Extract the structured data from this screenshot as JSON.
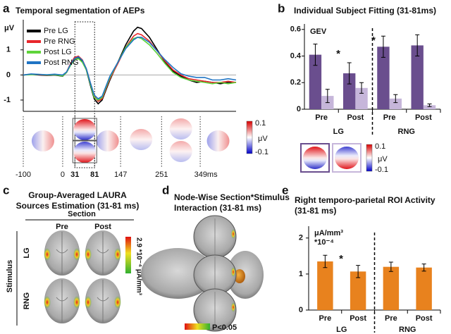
{
  "chart_data": [
    {
      "type": "line",
      "panel": "a",
      "title": "Temporal segmentation of AEPs",
      "ylabel": "μV",
      "x": [
        -100,
        -80,
        -60,
        -40,
        -20,
        0,
        10,
        20,
        30,
        40,
        50,
        60,
        70,
        80,
        90,
        100,
        110,
        120,
        140,
        160,
        180,
        190,
        200,
        220,
        240,
        260,
        280,
        300,
        320,
        340,
        360,
        380,
        400,
        420,
        440
      ],
      "xlim": [
        -100,
        440
      ],
      "xticks": [
        -100,
        0,
        31,
        81,
        147,
        251,
        {
          "value": 349,
          "label": "349ms"
        }
      ],
      "highlight": [
        31,
        81
      ],
      "ylim": [
        -1.45,
        2.2
      ],
      "yticks": [
        -1,
        0,
        1
      ],
      "series": [
        {
          "name": "Pre LG",
          "color": "#000000",
          "values": [
            0,
            0.02,
            0,
            -0.02,
            0,
            -0.05,
            0.1,
            0.4,
            0.65,
            0.7,
            0.55,
            0.2,
            -0.4,
            -0.95,
            -1.15,
            -1.0,
            -0.6,
            -0.2,
            0.5,
            1.2,
            1.75,
            1.9,
            1.85,
            1.5,
            1.0,
            0.5,
            0.15,
            -0.05,
            -0.2,
            -0.3,
            -0.25,
            -0.3,
            -0.35,
            -0.3,
            -0.3
          ]
        },
        {
          "name": "Pre RNG",
          "color": "#e8262b",
          "values": [
            0,
            0.03,
            0.01,
            -0.01,
            0.02,
            -0.03,
            0.12,
            0.45,
            0.7,
            0.75,
            0.6,
            0.25,
            -0.3,
            -0.85,
            -1.05,
            -0.95,
            -0.55,
            -0.15,
            0.45,
            1.1,
            1.55,
            1.65,
            1.6,
            1.35,
            0.95,
            0.55,
            0.2,
            0,
            -0.15,
            -0.2,
            -0.25,
            -0.3,
            -0.3,
            -0.25,
            -0.3
          ]
        },
        {
          "name": "Post LG",
          "color": "#5fd43a",
          "values": [
            0,
            0.01,
            0.02,
            0,
            0.01,
            -0.04,
            0.1,
            0.38,
            0.6,
            0.65,
            0.5,
            0.2,
            -0.35,
            -0.9,
            -1.0,
            -0.9,
            -0.5,
            -0.1,
            0.5,
            1.1,
            1.45,
            1.5,
            1.45,
            1.2,
            0.85,
            0.45,
            0.1,
            -0.1,
            -0.2,
            -0.25,
            -0.3,
            -0.35,
            -0.3,
            -0.35,
            -0.3
          ]
        },
        {
          "name": "Post RNG",
          "color": "#1f74c4",
          "values": [
            0,
            0.04,
            0.02,
            0.01,
            0.03,
            0,
            0.12,
            0.42,
            0.65,
            0.72,
            0.58,
            0.25,
            -0.3,
            -0.8,
            -0.95,
            -0.85,
            -0.45,
            -0.05,
            0.5,
            1.05,
            1.4,
            1.5,
            1.5,
            1.3,
            0.95,
            0.6,
            0.3,
            0.05,
            -0.05,
            -0.1,
            -0.1,
            -0.2,
            -0.2,
            -0.15,
            -0.2
          ]
        }
      ],
      "colorbar": {
        "max": 0.1,
        "min": -0.1,
        "unit": "μV"
      }
    },
    {
      "type": "bar",
      "panel": "b",
      "title": "Individual Subject Fitting (31-81ms)",
      "ylabel": "GEV",
      "categories": [
        "Pre",
        "Post",
        "Pre",
        "Post"
      ],
      "groups": [
        "LG",
        "RNG"
      ],
      "series": [
        {
          "color": "#6a4e8e",
          "values": [
            0.41,
            0.27,
            0.47,
            0.48
          ],
          "errors": [
            0.08,
            0.08,
            0.08,
            0.08
          ]
        },
        {
          "color": "#c6b6da",
          "values": [
            0.1,
            0.16,
            0.08,
            0.03
          ],
          "errors": [
            0.05,
            0.04,
            0.03,
            0.01
          ]
        }
      ],
      "ylim": [
        0,
        0.62
      ],
      "yticks": [
        0,
        0.2,
        0.4,
        0.6
      ],
      "annotations": [
        "*",
        "*"
      ],
      "colorbar": {
        "max": 0.1,
        "min": -0.1,
        "unit": "μV"
      }
    },
    {
      "type": "brain-grid",
      "panel": "c",
      "title": [
        "Group-Averaged  LAURA",
        "Sources Estimation (31-81 ms)"
      ],
      "columns_label": "Section",
      "columns": [
        "Pre",
        "Post"
      ],
      "rows_label": "Stimulus",
      "rows": [
        "LG",
        "RNG"
      ],
      "colorbar_label": "2.9 *10⁻⁴ μA/mm³"
    },
    {
      "type": "brain-views",
      "panel": "d",
      "title": [
        "Node-Wise Section*Stimulus",
        "Interaction (31-81 ms)"
      ],
      "colorbar_label": "P<0.05"
    },
    {
      "type": "bar",
      "panel": "e",
      "title": [
        "Right temporo-parietal ROI Activity",
        "(31-81 ms)"
      ],
      "ylabel": [
        "μA/mm³",
        "*10⁻⁴"
      ],
      "categories": [
        "Pre",
        "Post",
        "Pre",
        "Post"
      ],
      "groups": [
        "LG",
        "RNG"
      ],
      "series": [
        {
          "color": "#e8821e",
          "values": [
            1.35,
            1.07,
            1.2,
            1.18
          ],
          "errors": [
            0.17,
            0.17,
            0.13,
            0.1
          ]
        }
      ],
      "ylim": [
        0,
        2.25
      ],
      "yticks": [
        0,
        1,
        2
      ],
      "annotations": [
        "*"
      ]
    }
  ]
}
